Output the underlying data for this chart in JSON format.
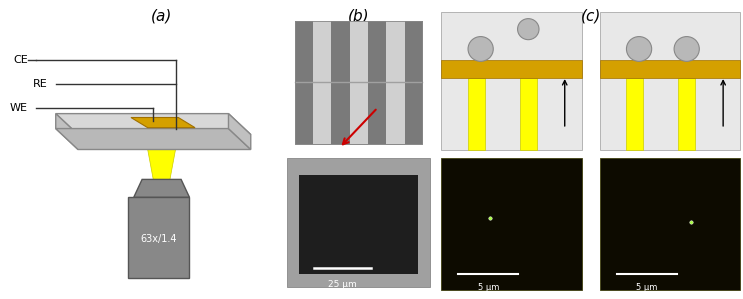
{
  "title_a": "(a)",
  "title_b": "(b)",
  "title_c": "(c)",
  "bg_color": "#ffffff",
  "panel_a": {
    "plate_top_color": "#d8d8d8",
    "plate_side_color": "#b8b8b8",
    "plate_edge_color": "#888888",
    "electrode_color": "#d4a000",
    "electrode_edge": "#a07000",
    "microscope_color": "#888888",
    "microscope_edge": "#555555",
    "yellow_beam": "#ffff00",
    "yellow_beam_edge": "#cccc00",
    "wire_color": "#333333",
    "label_63x": "63x/1.4",
    "label_fontsize": 7
  },
  "panel_b": {
    "outer_bg": "#b8b8b8",
    "stripe_dark": "#7a7a7a",
    "stripe_light": "#d0d0d0",
    "h_line_color": "#a0a0a0",
    "bottom_bg": "#a0a0a0",
    "inner_dark": "#1e1e1e",
    "scale_bar_color": "#ffffff",
    "scale_label": "25 μm",
    "arrow_color": "#cc0000"
  },
  "panel_c": {
    "schematic_bg": "#e8e8e8",
    "schematic_edge": "#aaaaaa",
    "gold_color": "#d4a000",
    "gold_edge": "#a07000",
    "pillar_color": "#ffff00",
    "pillar_edge": "#cccc00",
    "sphere_color": "#b8b8b8",
    "sphere_edge": "#888888",
    "arrow_color": "#000000",
    "fl_bg": "#0d0b00",
    "fl_edge": "#333300",
    "dot_color": "#aaff44",
    "scale_color": "#ffffff",
    "scale_label": "5 μm"
  }
}
